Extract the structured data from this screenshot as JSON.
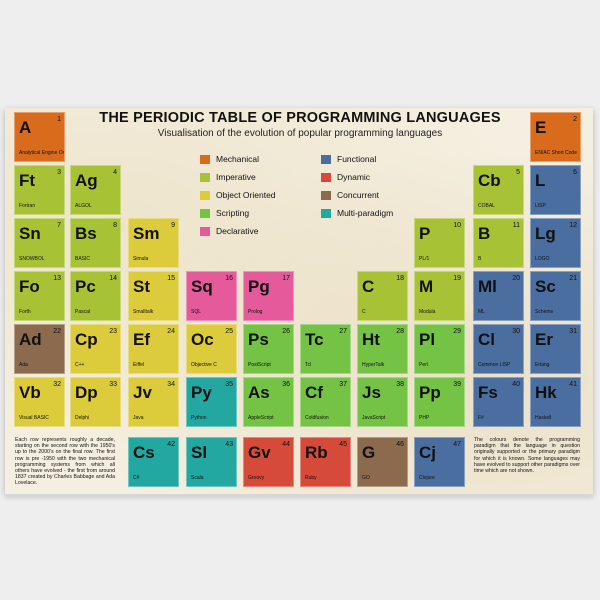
{
  "poster": {
    "title": "THE PERIODIC TABLE OF PROGRAMMING LANGUAGES",
    "subtitle": "Visualisation of the evolution of popular programming languages",
    "note_left": "Each row represents roughly a decade, starting on the second row with the 1950's up to the 2000's on the final row. The first row is pre -1950 with the two mechanical programming systems from which all others have evolved - the first from around 1837 created by Charles Babbage and Ada Lovelace.",
    "note_right": "The colours denote the programming paradigm that the language in question originally supported or the primary paradigm for which it is known. Some languages may have evolved to support other paradigms over time which are not shown."
  },
  "colors": {
    "mechanical": "#d96b1c",
    "imperative": "#a8c236",
    "object_oriented": "#dccb3a",
    "scripting": "#74c345",
    "declarative": "#e45a9b",
    "functional": "#4b6ea0",
    "dynamic": "#d64a3a",
    "concurrent": "#8b6a4e",
    "multi_paradigm": "#22a8a0"
  },
  "legend": [
    {
      "label": "Mechanical",
      "color": "#d96b1c"
    },
    {
      "label": "Imperative",
      "color": "#a8c236"
    },
    {
      "label": "Object Oriented",
      "color": "#dccb3a"
    },
    {
      "label": "Scripting",
      "color": "#74c345"
    },
    {
      "label": "Declarative",
      "color": "#e45a9b"
    },
    {
      "label": "Functional",
      "color": "#4b6ea0"
    },
    {
      "label": "Dynamic",
      "color": "#d64a3a"
    },
    {
      "label": "Concurrent",
      "color": "#8b6a4e"
    },
    {
      "label": "Multi-paradigm",
      "color": "#22a8a0"
    }
  ],
  "elements": [
    {
      "num": "1",
      "sym": "A",
      "name": "Analytical Engine Order Code",
      "paradigm": "mechanical"
    },
    {
      "num": "2",
      "sym": "E",
      "name": "ENIAC Short Code",
      "paradigm": "mechanical"
    },
    {
      "num": "3",
      "sym": "Ft",
      "name": "Fortran",
      "paradigm": "imperative"
    },
    {
      "num": "4",
      "sym": "Ag",
      "name": "ALGOL",
      "paradigm": "imperative"
    },
    {
      "num": "5",
      "sym": "Cb",
      "name": "COBAL",
      "paradigm": "imperative"
    },
    {
      "num": "6",
      "sym": "L",
      "name": "LISP",
      "paradigm": "functional"
    },
    {
      "num": "7",
      "sym": "Sn",
      "name": "SNOWBOL",
      "paradigm": "imperative"
    },
    {
      "num": "8",
      "sym": "Bs",
      "name": "BASIC",
      "paradigm": "imperative"
    },
    {
      "num": "9",
      "sym": "Sm",
      "name": "Simula",
      "paradigm": "object_oriented"
    },
    {
      "num": "10",
      "sym": "P",
      "name": "PL/1",
      "paradigm": "imperative"
    },
    {
      "num": "11",
      "sym": "B",
      "name": "B",
      "paradigm": "imperative"
    },
    {
      "num": "12",
      "sym": "Lg",
      "name": "LOGO",
      "paradigm": "functional"
    },
    {
      "num": "13",
      "sym": "Fo",
      "name": "Forth",
      "paradigm": "imperative"
    },
    {
      "num": "14",
      "sym": "Pc",
      "name": "Pascal",
      "paradigm": "imperative"
    },
    {
      "num": "15",
      "sym": "St",
      "name": "Smalltalk",
      "paradigm": "object_oriented"
    },
    {
      "num": "16",
      "sym": "Sq",
      "name": "SQL",
      "paradigm": "declarative"
    },
    {
      "num": "17",
      "sym": "Pg",
      "name": "Prolog",
      "paradigm": "declarative"
    },
    {
      "num": "18",
      "sym": "C",
      "name": "C",
      "paradigm": "imperative"
    },
    {
      "num": "19",
      "sym": "M",
      "name": "Modula",
      "paradigm": "imperative"
    },
    {
      "num": "20",
      "sym": "Ml",
      "name": "ML",
      "paradigm": "functional"
    },
    {
      "num": "21",
      "sym": "Sc",
      "name": "Scheme",
      "paradigm": "functional"
    },
    {
      "num": "22",
      "sym": "Ad",
      "name": "Ada",
      "paradigm": "concurrent"
    },
    {
      "num": "23",
      "sym": "Cp",
      "name": "C++",
      "paradigm": "object_oriented"
    },
    {
      "num": "24",
      "sym": "Ef",
      "name": "Eiffel",
      "paradigm": "object_oriented"
    },
    {
      "num": "25",
      "sym": "Oc",
      "name": "Objective C",
      "paradigm": "object_oriented"
    },
    {
      "num": "26",
      "sym": "Ps",
      "name": "PostScript",
      "paradigm": "scripting"
    },
    {
      "num": "27",
      "sym": "Tc",
      "name": "Tcl",
      "paradigm": "scripting"
    },
    {
      "num": "28",
      "sym": "Ht",
      "name": "HyperTalk",
      "paradigm": "scripting"
    },
    {
      "num": "29",
      "sym": "Pl",
      "name": "Perl",
      "paradigm": "scripting"
    },
    {
      "num": "30",
      "sym": "Cl",
      "name": "Common LISP",
      "paradigm": "functional"
    },
    {
      "num": "31",
      "sym": "Er",
      "name": "Erlang",
      "paradigm": "functional"
    },
    {
      "num": "32",
      "sym": "Vb",
      "name": "Visual BASIC",
      "paradigm": "object_oriented"
    },
    {
      "num": "33",
      "sym": "Dp",
      "name": "Delphi",
      "paradigm": "object_oriented"
    },
    {
      "num": "34",
      "sym": "Jv",
      "name": "Java",
      "paradigm": "object_oriented"
    },
    {
      "num": "35",
      "sym": "Py",
      "name": "Python",
      "paradigm": "multi_paradigm"
    },
    {
      "num": "36",
      "sym": "As",
      "name": "AppleScript",
      "paradigm": "scripting"
    },
    {
      "num": "37",
      "sym": "Cf",
      "name": "Coldfusion",
      "paradigm": "scripting"
    },
    {
      "num": "38",
      "sym": "Js",
      "name": "JavaScript",
      "paradigm": "scripting"
    },
    {
      "num": "39",
      "sym": "Pp",
      "name": "PHP",
      "paradigm": "scripting"
    },
    {
      "num": "40",
      "sym": "Fs",
      "name": "F#",
      "paradigm": "functional"
    },
    {
      "num": "41",
      "sym": "Hk",
      "name": "Haskell",
      "paradigm": "functional"
    },
    {
      "num": "42",
      "sym": "Cs",
      "name": "C#",
      "paradigm": "multi_paradigm"
    },
    {
      "num": "43",
      "sym": "Sl",
      "name": "Scala",
      "paradigm": "multi_paradigm"
    },
    {
      "num": "44",
      "sym": "Gv",
      "name": "Groovy",
      "paradigm": "dynamic"
    },
    {
      "num": "45",
      "sym": "Rb",
      "name": "Ruby",
      "paradigm": "dynamic"
    },
    {
      "num": "46",
      "sym": "G",
      "name": "GO",
      "paradigm": "concurrent"
    },
    {
      "num": "47",
      "sym": "Cj",
      "name": "Clojure",
      "paradigm": "functional"
    }
  ]
}
